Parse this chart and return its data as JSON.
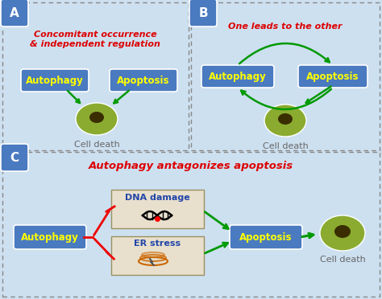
{
  "bg_color": "#cde0f0",
  "panel_A_title": "Concomitant occurrence\n& independent regulation",
  "panel_B_title": "One leads to the other",
  "panel_C_title": "Autophagy antagonizes apoptosis",
  "box_fill": "#4a7abf",
  "box_text_color": "#ffff00",
  "label_color_red": "#dd0000",
  "arrow_green": "#009900",
  "arrow_red": "#ee0000",
  "cell_outer": "#8aab30",
  "cell_inner": "#3a2e00",
  "dna_box_fill": "#e8e0cc",
  "dna_box_border": "#9a9060",
  "panel_border": "#888888",
  "label_box_fill": "#4a7abf",
  "white": "#ffffff",
  "gray_text": "#666666"
}
